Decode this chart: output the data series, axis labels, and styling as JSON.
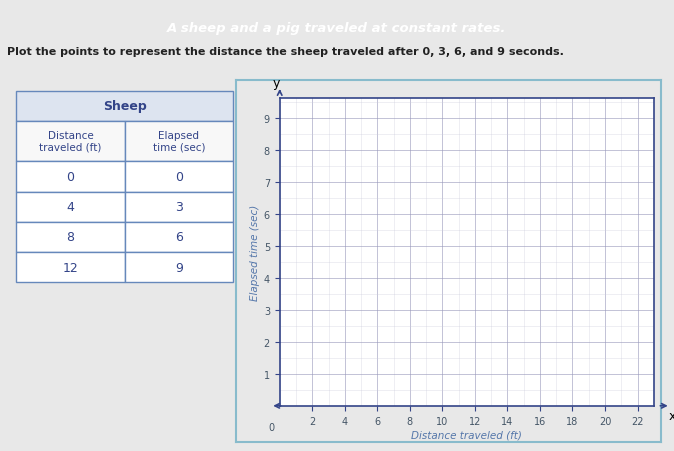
{
  "title_banner": "A sheep and a pig traveled at constant rates.",
  "subtitle": "Plot the points to represent the distance the sheep traveled after 0, 3, 6, and 9 seconds.",
  "table_title": "Sheep",
  "table_col1": "Distance\ntraveled (ft)",
  "table_col2": "Elapsed\ntime (sec)",
  "table_data": [
    [
      0,
      0
    ],
    [
      4,
      3
    ],
    [
      8,
      6
    ],
    [
      12,
      9
    ]
  ],
  "xlabel": "Distance traveled (ft)",
  "ylabel": "Elapsed time (sec)",
  "xlim": [
    0,
    23
  ],
  "ylim": [
    0,
    9.6
  ],
  "xticks": [
    2,
    4,
    6,
    8,
    10,
    12,
    14,
    16,
    18,
    20,
    22
  ],
  "yticks": [
    1,
    2,
    3,
    4,
    5,
    6,
    7,
    8,
    9
  ],
  "banner_color": "#5555cc",
  "banner_text_color": "#ffffff",
  "background_color": "#e8e8e8",
  "plot_bg_color": "#ffffff",
  "grid_major_color": "#9999bb",
  "grid_minor_color": "#ccccdd",
  "table_border_color": "#6688bb",
  "table_header_color": "#dde4f0",
  "axis_color": "#334488",
  "axis_label_color": "#5577aa",
  "subtitle_color": "#222222",
  "tick_label_color": "#445566",
  "plot_border_color": "#88aacc",
  "outer_border_color": "#88bbcc"
}
